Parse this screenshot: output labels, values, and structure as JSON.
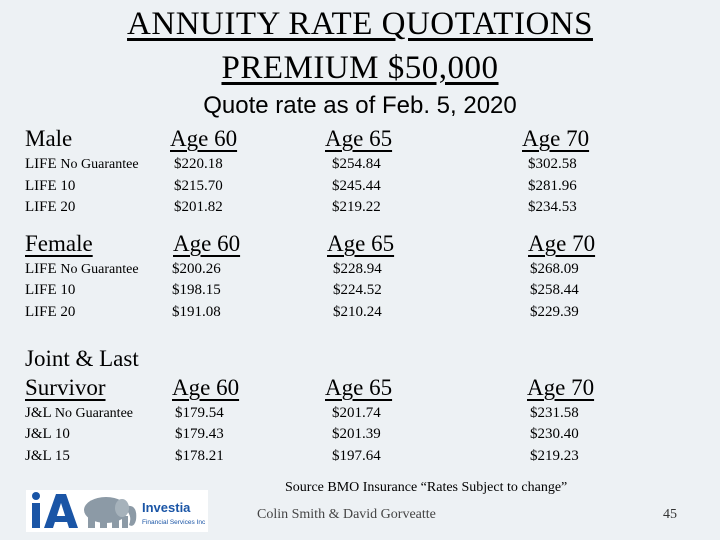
{
  "title_line1": "ANNUITY RATE QUOTATIONS",
  "title_line2": "PREMIUM $50,000",
  "quote_date": "Quote rate as of Feb. 5, 2020",
  "sections": {
    "male": {
      "heading": "Male",
      "ages": [
        "Age 60",
        "Age 65",
        "Age 70"
      ],
      "rows": [
        {
          "label_main": "LIFE ",
          "label_small": "No Guarantee",
          "values": [
            "$220.18",
            "$254.84",
            "$302.58"
          ]
        },
        {
          "label_main": "LIFE 10",
          "label_small": "",
          "values": [
            "$215.70",
            "$245.44",
            "$281.96"
          ]
        },
        {
          "label_main": "LIFE 20",
          "label_small": "",
          "values": [
            "$201.82",
            "$219.22",
            "$234.53"
          ]
        }
      ]
    },
    "female": {
      "heading": "Female",
      "ages": [
        "Age 60",
        "Age 65",
        "Age 70"
      ],
      "rows": [
        {
          "label_main": "LIFE ",
          "label_small": "No Guarantee",
          "values": [
            "$200.26",
            "$228.94",
            "$268.09"
          ]
        },
        {
          "label_main": "LIFE 10",
          "label_small": "",
          "values": [
            "$198.15",
            "$224.52",
            "$258.44"
          ]
        },
        {
          "label_main": "LIFE 20",
          "label_small": "",
          "values": [
            "$191.08",
            "$210.24",
            "$229.39"
          ]
        }
      ]
    },
    "joint": {
      "heading_line1": "Joint & Last",
      "heading_line2": "Survivor",
      "ages": [
        "Age 60",
        "Age 65",
        "Age 70"
      ],
      "rows": [
        {
          "label_main": "J&L ",
          "label_small": "No Guarantee",
          "values": [
            "$179.54",
            "$201.74",
            "$231.58"
          ]
        },
        {
          "label_main": "J&L 10",
          "label_small": "",
          "values": [
            "$179.43",
            "$201.39",
            "$230.40"
          ]
        },
        {
          "label_main": "J&L 15",
          "label_small": "",
          "values": [
            "$178.21",
            "$197.64",
            "$219.23"
          ]
        }
      ]
    }
  },
  "source": "Source BMO Insurance “Rates Subject to change”",
  "footer": "Colin Smith & David Gorveatte",
  "page_number": "45",
  "logo": {
    "mark": "iA",
    "name": "Investia",
    "tagline": "Financial Services Inc",
    "icon": "elephant-icon",
    "mark_color": "#1a55a6",
    "elephant_color": "#8c9aa6"
  }
}
